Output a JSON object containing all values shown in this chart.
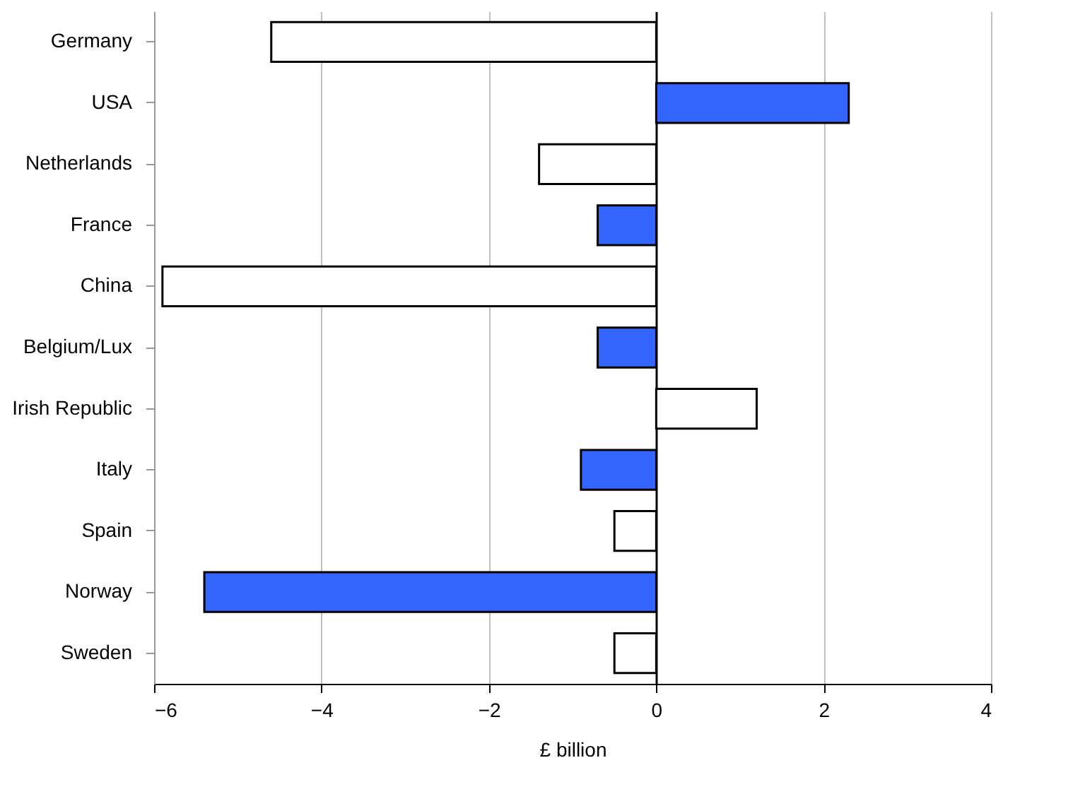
{
  "chart_data": {
    "type": "bar",
    "orientation": "horizontal",
    "xlabel": "£ billion",
    "categories": [
      "Germany",
      "USA",
      "Netherlands",
      "France",
      "China",
      "Belgium/Lux",
      "Irish Republic",
      "Italy",
      "Spain",
      "Norway",
      "Sweden"
    ],
    "values": [
      -4.6,
      2.3,
      -1.4,
      -0.7,
      -5.9,
      -0.7,
      1.2,
      -0.9,
      -0.5,
      -5.4,
      -0.5
    ],
    "colors": [
      "#ffffff",
      "#3366ff",
      "#ffffff",
      "#3366ff",
      "#ffffff",
      "#3366ff",
      "#ffffff",
      "#3366ff",
      "#ffffff",
      "#3366ff",
      "#ffffff"
    ],
    "xlim": [
      -6,
      4
    ],
    "xticks": [
      -6,
      -4,
      -2,
      0,
      2,
      4
    ],
    "grid": "x",
    "legend": false
  }
}
